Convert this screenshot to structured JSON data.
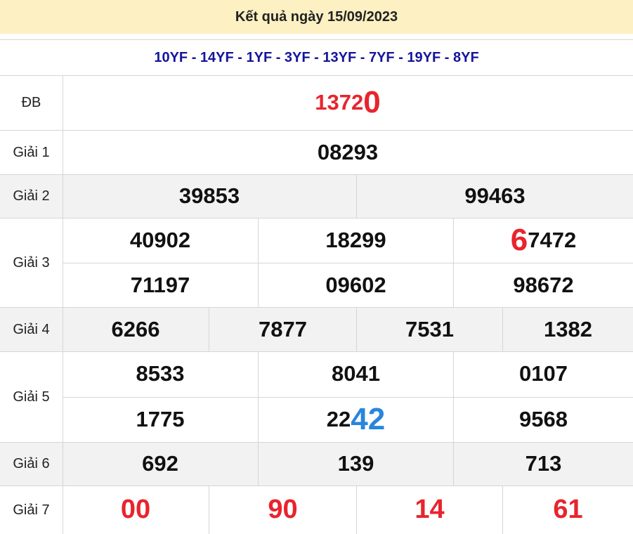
{
  "header": {
    "title": "Kết quả ngày 15/09/2023"
  },
  "codes": "10YF - 14YF - 1YF - 3YF - 13YF - 7YF - 19YF - 8YF",
  "colors": {
    "highlight_red": "#e8242d",
    "highlight_blue": "#2a85dd",
    "header_bg": "#fdf0c2",
    "codes_text": "#15159a"
  },
  "prizes": [
    {
      "label": "ĐB",
      "cols": 1,
      "numbers": [
        {
          "parts": [
            {
              "text": "1372",
              "style": "red"
            },
            {
              "text": "0",
              "style": "red big"
            }
          ]
        }
      ]
    },
    {
      "label": "Giải 1",
      "cols": 1,
      "numbers": [
        {
          "parts": [
            {
              "text": "08293"
            }
          ]
        }
      ]
    },
    {
      "label": "Giải 2",
      "cols": 2,
      "numbers": [
        {
          "parts": [
            {
              "text": "39853"
            }
          ]
        },
        {
          "parts": [
            {
              "text": "99463"
            }
          ]
        }
      ]
    },
    {
      "label": "Giải 3",
      "cols": 3,
      "numbers": [
        {
          "parts": [
            {
              "text": "40902"
            }
          ]
        },
        {
          "parts": [
            {
              "text": "18299"
            }
          ]
        },
        {
          "parts": [
            {
              "text": "6",
              "style": "red big"
            },
            {
              "text": "7472"
            }
          ]
        },
        {
          "parts": [
            {
              "text": "71197"
            }
          ]
        },
        {
          "parts": [
            {
              "text": "09602"
            }
          ]
        },
        {
          "parts": [
            {
              "text": "98672"
            }
          ]
        }
      ]
    },
    {
      "label": "Giải 4",
      "cols": 4,
      "numbers": [
        {
          "parts": [
            {
              "text": "6266"
            }
          ]
        },
        {
          "parts": [
            {
              "text": "7877"
            }
          ]
        },
        {
          "parts": [
            {
              "text": "7531"
            }
          ]
        },
        {
          "parts": [
            {
              "text": "1382"
            }
          ]
        }
      ]
    },
    {
      "label": "Giải 5",
      "cols": 3,
      "numbers": [
        {
          "parts": [
            {
              "text": "8533"
            }
          ]
        },
        {
          "parts": [
            {
              "text": "8041"
            }
          ]
        },
        {
          "parts": [
            {
              "text": "0107"
            }
          ]
        },
        {
          "parts": [
            {
              "text": "1775"
            }
          ]
        },
        {
          "parts": [
            {
              "text": "22"
            },
            {
              "text": "42",
              "style": "blue big"
            }
          ]
        },
        {
          "parts": [
            {
              "text": "9568"
            }
          ]
        }
      ]
    },
    {
      "label": "Giải 6",
      "cols": 3,
      "numbers": [
        {
          "parts": [
            {
              "text": "692"
            }
          ]
        },
        {
          "parts": [
            {
              "text": "139"
            }
          ]
        },
        {
          "parts": [
            {
              "text": "713"
            }
          ]
        }
      ]
    },
    {
      "label": "Giải 7",
      "cols": 4,
      "numbers": [
        {
          "parts": [
            {
              "text": "00",
              "style": "red-all"
            }
          ]
        },
        {
          "parts": [
            {
              "text": "90",
              "style": "red-all"
            }
          ]
        },
        {
          "parts": [
            {
              "text": "14",
              "style": "red-all"
            }
          ]
        },
        {
          "parts": [
            {
              "text": "61",
              "style": "red-all"
            }
          ]
        }
      ]
    }
  ]
}
